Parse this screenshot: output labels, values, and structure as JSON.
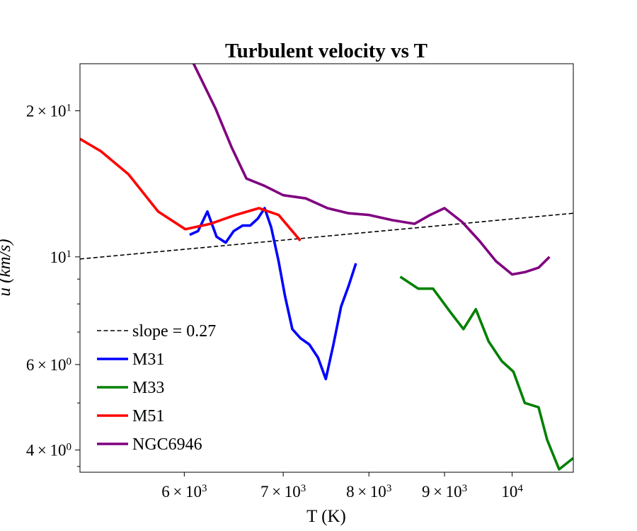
{
  "chart_data": {
    "type": "line",
    "title": "Turbulent velocity vs T",
    "xlabel": "T (K)",
    "ylabel": "u (km/s)",
    "xscale": "log",
    "yscale": "log",
    "xlim": [
      5100,
      11000
    ],
    "ylim": [
      3.6,
      25
    ],
    "x_ticks": [
      {
        "value": 6000,
        "mant": "6",
        "exp": "3"
      },
      {
        "value": 7000,
        "mant": "7",
        "exp": "3"
      },
      {
        "value": 8000,
        "mant": "8",
        "exp": "3"
      },
      {
        "value": 9000,
        "mant": "9",
        "exp": "3"
      },
      {
        "value": 10000,
        "mant": "",
        "exp": "4"
      }
    ],
    "y_ticks": [
      {
        "value": 4,
        "mant": "4",
        "exp": "0"
      },
      {
        "value": 6,
        "mant": "6",
        "exp": "0"
      },
      {
        "value": 10,
        "mant": "",
        "exp": "1"
      },
      {
        "value": 20,
        "mant": "2",
        "exp": "1"
      }
    ],
    "y_minor_ticks": [
      3.7,
      5,
      7,
      8,
      9
    ],
    "legend_position": "lower-left",
    "grid": false,
    "series": [
      {
        "name": "slope = 0.27",
        "color": "#000000",
        "style": "dashed",
        "x": [
          5100,
          11000
        ],
        "y": [
          9.9,
          12.3
        ]
      },
      {
        "name": "M31",
        "color": "#0000ff",
        "style": "solid",
        "x": [
          6050,
          6130,
          6220,
          6310,
          6400,
          6480,
          6570,
          6650,
          6730,
          6800,
          6870,
          6950,
          7020,
          7100,
          7190,
          7290,
          7390,
          7480,
          7570,
          7660,
          7750,
          7840
        ],
        "y": [
          11.1,
          11.3,
          12.4,
          11.0,
          10.7,
          11.3,
          11.6,
          11.6,
          12.0,
          12.6,
          11.5,
          9.8,
          8.3,
          7.1,
          6.8,
          6.6,
          6.2,
          5.6,
          6.6,
          7.9,
          8.7,
          9.7
        ]
      },
      {
        "name": "M33",
        "color": "#008000",
        "style": "solid",
        "x": [
          8400,
          8640,
          8840,
          9080,
          9270,
          9450,
          9640,
          9840,
          10020,
          10200,
          10420,
          10560,
          10760,
          11000
        ],
        "y": [
          9.1,
          8.6,
          8.6,
          7.7,
          7.1,
          7.8,
          6.7,
          6.1,
          5.8,
          5.0,
          4.9,
          4.2,
          3.65,
          3.85
        ]
      },
      {
        "name": "M51",
        "color": "#ff0000",
        "style": "solid",
        "x": [
          5100,
          5270,
          5500,
          5760,
          6010,
          6250,
          6500,
          6740,
          6950,
          7190
        ],
        "y": [
          17.5,
          16.5,
          14.8,
          12.4,
          11.4,
          11.7,
          12.2,
          12.6,
          12.2,
          10.8
        ]
      },
      {
        "name": "NGC6946",
        "color": "#800080",
        "style": "solid",
        "x": [
          6080,
          6300,
          6460,
          6610,
          6800,
          7000,
          7250,
          7500,
          7750,
          8000,
          8300,
          8590,
          8800,
          9000,
          9250,
          9500,
          9750,
          10000,
          10200,
          10420,
          10600
        ],
        "y": [
          25.2,
          20.2,
          16.8,
          14.5,
          14.0,
          13.4,
          13.2,
          12.6,
          12.3,
          12.2,
          11.9,
          11.7,
          12.2,
          12.6,
          11.8,
          10.8,
          9.8,
          9.2,
          9.3,
          9.5,
          10.0
        ]
      }
    ]
  }
}
